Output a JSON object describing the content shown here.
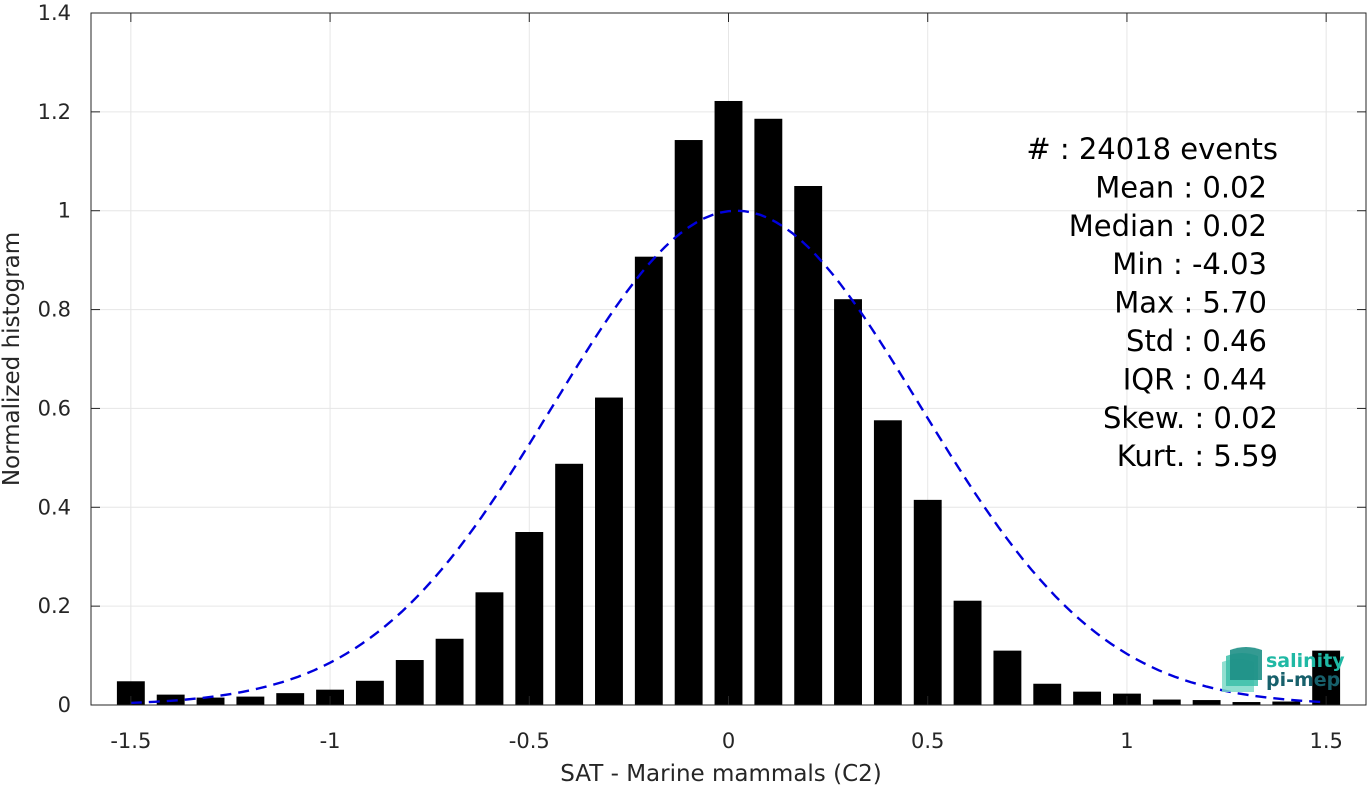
{
  "chart_data": {
    "type": "bar",
    "xlabel": "SAT - Marine mammals (C2)",
    "ylabel": "Normalized histogram",
    "xlim": [
      -1.6,
      1.6
    ],
    "ylim": [
      0,
      1.4
    ],
    "grid": true,
    "x_ticks": [
      -1.5,
      -1,
      -0.5,
      0,
      0.5,
      1,
      1.5
    ],
    "x_tick_labels": [
      "-1.5",
      "-1",
      "-0.5",
      "0",
      "0.5",
      "1",
      "1.5"
    ],
    "y_ticks": [
      0,
      0.2,
      0.4,
      0.6,
      0.8,
      1,
      1.2,
      1.4
    ],
    "y_tick_labels": [
      "0",
      "0.2",
      "0.4",
      "0.6",
      "0.8",
      "1",
      "1.2",
      "1.4"
    ],
    "bar_width": 0.07,
    "bar_color": "#000000",
    "bars": {
      "x": [
        -1.5,
        -1.4,
        -1.3,
        -1.2,
        -1.1,
        -1.0,
        -0.9,
        -0.8,
        -0.7,
        -0.6,
        -0.5,
        -0.4,
        -0.3,
        -0.2,
        -0.1,
        0.0,
        0.1,
        0.2,
        0.3,
        0.4,
        0.5,
        0.6,
        0.7,
        0.8,
        0.9,
        1.0,
        1.1,
        1.2,
        1.3,
        1.4,
        1.5
      ],
      "values": [
        0.048,
        0.021,
        0.015,
        0.017,
        0.024,
        0.031,
        0.049,
        0.091,
        0.134,
        0.228,
        0.35,
        0.488,
        0.622,
        0.907,
        1.143,
        1.222,
        1.186,
        1.05,
        0.821,
        0.576,
        0.415,
        0.211,
        0.11,
        0.043,
        0.027,
        0.023,
        0.011,
        0.01,
        0.006,
        0.007,
        0.11
      ]
    },
    "fit_curve": {
      "type": "normal",
      "mean": 0.02,
      "std": 0.46,
      "peak": 1.0,
      "color": "#0000dd",
      "style": "dashed"
    },
    "stats": [
      {
        "label": "#  : 24018 events",
        "indent": 0
      },
      {
        "label": "Mean : 0.02",
        "indent": 1
      },
      {
        "label": "Median : 0.02",
        "indent": 1
      },
      {
        "label": "Min : -4.03",
        "indent": 1
      },
      {
        "label": "Max : 5.70",
        "indent": 1
      },
      {
        "label": "Std : 0.46",
        "indent": 1
      },
      {
        "label": "IQR : 0.44",
        "indent": 1
      },
      {
        "label": "Skew. : 0.02",
        "indent": 0
      },
      {
        "label": "Kurt. : 5.59",
        "indent": 0
      }
    ]
  },
  "logo": {
    "line1": "salinity",
    "line2": "pi-mep",
    "color1": "#1fb8a4",
    "color2": "#17606b"
  }
}
